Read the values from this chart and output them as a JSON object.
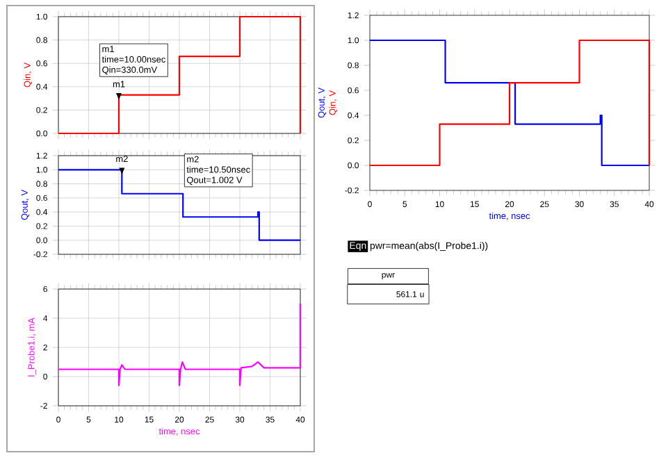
{
  "chart_data": [
    {
      "type": "line",
      "ylabel": "Qin, V",
      "xlim": [
        0,
        40
      ],
      "ylim": [
        0,
        1
      ],
      "xticks": [
        0,
        5,
        10,
        15,
        20,
        25,
        30,
        35,
        40
      ],
      "yticks": [
        {
          "value": 0,
          "label": "0.0"
        },
        {
          "value": 0.2,
          "label": "0.2"
        },
        {
          "value": 0.4,
          "label": "0.4"
        },
        {
          "value": 0.6,
          "label": "0.6"
        },
        {
          "value": 0.8,
          "label": "0.8"
        },
        {
          "value": 1,
          "label": "1.0"
        }
      ],
      "grid": true,
      "tick_labels": "y",
      "marker": "none",
      "series": [
        {
          "color": "#ff0000",
          "x": [
            0,
            10,
            10,
            20,
            20,
            30,
            30,
            40,
            40
          ],
          "values": [
            0,
            0,
            0.33,
            0.33,
            0.66,
            0.66,
            1,
            1,
            0
          ]
        }
      ],
      "annotations": [
        {
          "text": "m1",
          "x": 10,
          "y": 0.33
        },
        "m1",
        "time=10.00nsec",
        "Qin=330.0mV"
      ]
    },
    {
      "type": "line",
      "ylabel": "Qout, V",
      "xlim": [
        0,
        40
      ],
      "ylim": [
        -0.2,
        1.2
      ],
      "xticks": [
        0,
        5,
        10,
        15,
        20,
        25,
        30,
        35,
        40
      ],
      "yticks": [
        {
          "value": -0.2,
          "label": "-0.2"
        },
        {
          "value": 0,
          "label": "0.0"
        },
        {
          "value": 0.2,
          "label": "0.2"
        },
        {
          "value": 0.4,
          "label": "0.4"
        },
        {
          "value": 0.6,
          "label": "0.6"
        },
        {
          "value": 0.8,
          "label": "0.8"
        },
        {
          "value": 1,
          "label": "1.0"
        },
        {
          "value": 1.2,
          "label": "1.2"
        }
      ],
      "grid": true,
      "tick_labels": "y",
      "marker": "none",
      "series": [
        {
          "color": "#0000ff",
          "x": [
            0,
            10.5,
            10.5,
            20.6,
            20.6,
            33,
            33,
            33.2,
            33.2,
            40
          ],
          "values": [
            1,
            1,
            0.66,
            0.66,
            0.33,
            0.33,
            0.4,
            0.4,
            0,
            0
          ]
        }
      ],
      "annotations": [
        {
          "text": "m2",
          "x": 10.5,
          "y": 1.002
        },
        "m2",
        "time=10.50nsec",
        "Qout=1.002 V"
      ]
    },
    {
      "type": "line",
      "xlabel": "time, nsec",
      "ylabel": "I_Probe1.i, mA",
      "xlim": [
        0,
        40
      ],
      "ylim": [
        -2,
        6
      ],
      "xticks": [
        0,
        5,
        10,
        15,
        20,
        25,
        30,
        35,
        40
      ],
      "yticks": [
        -2,
        0,
        2,
        4,
        6
      ],
      "grid": true,
      "marker": "none",
      "series": [
        {
          "color": "#ff00ff",
          "x": [
            0,
            10,
            10,
            10.2,
            10.5,
            11,
            20,
            20,
            20.2,
            20.5,
            21,
            30,
            30,
            30.2,
            32,
            33,
            34,
            40,
            40
          ],
          "values": [
            0.5,
            0.5,
            -0.6,
            0.5,
            0.8,
            0.5,
            0.5,
            -0.6,
            0.5,
            1.0,
            0.5,
            0.5,
            -0.6,
            0.6,
            0.7,
            1.0,
            0.6,
            0.6,
            5
          ]
        }
      ]
    },
    {
      "type": "line",
      "xlabel": "time, nsec",
      "xlim": [
        0,
        40
      ],
      "ylim": [
        -0.2,
        1.2
      ],
      "xticks": [
        0,
        5,
        10,
        15,
        20,
        25,
        30,
        35,
        40
      ],
      "yticks": [
        {
          "value": -0.2,
          "label": "-0.2"
        },
        {
          "value": 0,
          "label": "0.0"
        },
        {
          "value": 0.2,
          "label": "0.2"
        },
        {
          "value": 0.4,
          "label": "0.4"
        },
        {
          "value": 0.6,
          "label": "0.6"
        },
        {
          "value": 0.8,
          "label": "0.8"
        },
        {
          "value": 1,
          "label": "1.0"
        },
        {
          "value": 1.2,
          "label": "1.2"
        }
      ],
      "grid": false,
      "marker": "none",
      "series": [
        {
          "name": "Qout, V",
          "color": "#0000ff",
          "x": [
            0,
            10.8,
            10.8,
            20.8,
            20.8,
            33,
            33,
            33.2,
            33.2,
            40
          ],
          "values": [
            1,
            1,
            0.66,
            0.66,
            0.33,
            0.33,
            0.4,
            0.4,
            0,
            0
          ]
        },
        {
          "name": "Qin, V",
          "color": "#ff0000",
          "x": [
            0,
            10,
            10,
            20,
            20,
            30,
            30,
            40,
            40
          ],
          "values": [
            0,
            0,
            0.33,
            0.33,
            0.66,
            0.66,
            1,
            1,
            0
          ]
        }
      ]
    },
    {
      "type": "other",
      "annotations": [
        "Eqn",
        "pwr=mean(abs(I_Probe1.i))",
        "pwr",
        "561.1 u"
      ]
    }
  ]
}
